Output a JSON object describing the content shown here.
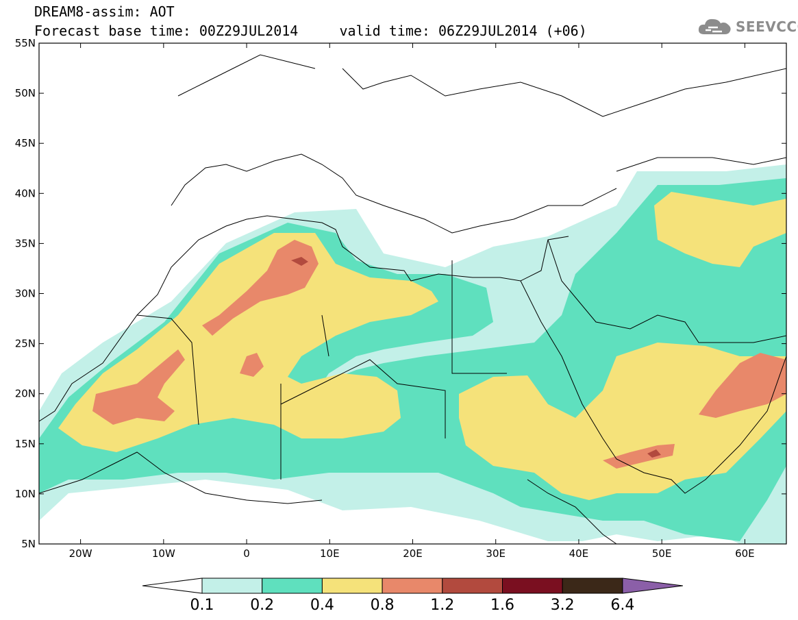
{
  "title": {
    "line1": "DREAM8-assim: AOT",
    "line2": "Forecast base time: 00Z29JUL2014     valid time: 06Z29JUL2014 (+06)"
  },
  "logo": {
    "text": "SEEVCCC",
    "icon": "cloud-icon"
  },
  "map": {
    "lon_range": [
      -25,
      65
    ],
    "lat_range": [
      5,
      55
    ],
    "lat_ticks": [
      "55N",
      "50N",
      "45N",
      "40N",
      "35N",
      "30N",
      "25N",
      "20N",
      "15N",
      "10N",
      "5N"
    ],
    "lon_ticks": [
      "20W",
      "10W",
      "0",
      "10E",
      "20E",
      "30E",
      "40E",
      "50E",
      "60E"
    ]
  },
  "legend": {
    "labels": [
      "0.1",
      "0.2",
      "0.4",
      "0.8",
      "1.2",
      "1.6",
      "3.2",
      "6.4"
    ],
    "colors": [
      "#ffffff",
      "#c3f0e8",
      "#5fe0be",
      "#f5e27a",
      "#e8886a",
      "#b24a3e",
      "#7a0f20",
      "#3b2818",
      "#8b5fa8"
    ]
  },
  "palette": {
    "c1": "#c3f0e8",
    "c2": "#5fe0be",
    "c3": "#f5e27a",
    "c4": "#e8886a",
    "c5": "#b24a3e",
    "c6": "#7a0f20"
  }
}
